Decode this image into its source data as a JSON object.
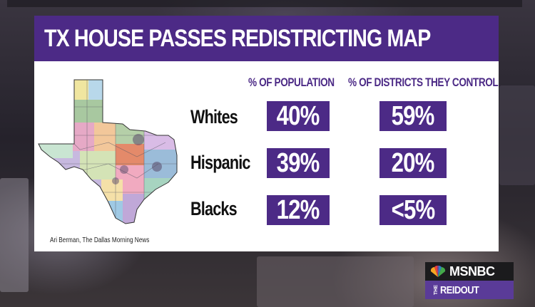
{
  "banner": {
    "title": "TX HOUSE PASSES REDISTRICTING MAP"
  },
  "columns": {
    "population": "% OF POPULATION",
    "districts": "% OF DISTRICTS THEY CONTROL"
  },
  "rows": [
    {
      "label": "Whites",
      "population": "40%",
      "districts": "59%"
    },
    {
      "label": "Hispanic",
      "population": "39%",
      "districts": "20%"
    },
    {
      "label": "Blacks",
      "population": "12%",
      "districts": "<5%"
    }
  ],
  "credit": "Ari Berman, The Dallas Morning News",
  "logo": {
    "network": "MSNBC",
    "show_prefix": "THE",
    "show": "REIDOUT"
  },
  "colors": {
    "accent": "#4c2a86",
    "show_band": "#5a3b98"
  },
  "map": {
    "icon": "texas-district-map-icon"
  }
}
